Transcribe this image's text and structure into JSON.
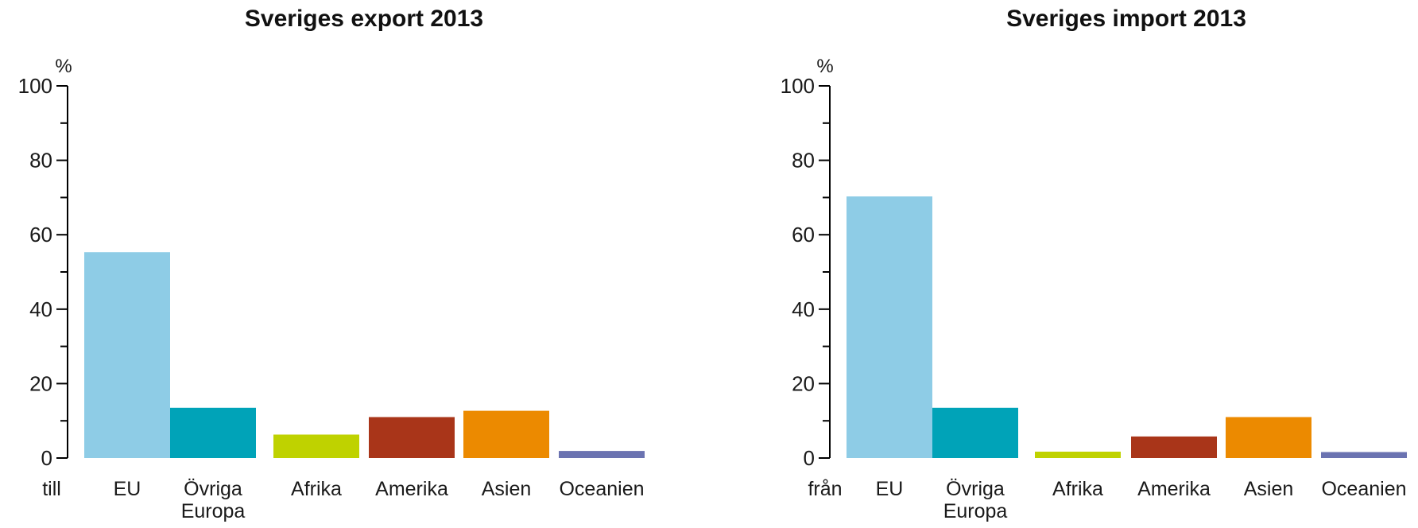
{
  "chart_data": [
    {
      "type": "bar",
      "title": "Sveriges export 2013",
      "unit_label": "%",
      "axis_prefix": "till",
      "categories": [
        "EU",
        "Övriga Europa",
        "Afrika",
        "Amerika",
        "Asien",
        "Oceanien"
      ],
      "values": [
        55.3,
        13.5,
        6.3,
        11,
        12.7,
        1.9
      ],
      "ylim": [
        0,
        100
      ],
      "yticks": [
        0,
        20,
        40,
        60,
        80,
        100
      ],
      "colors": [
        "#8ecce6",
        "#00a3b8",
        "#bfd200",
        "#a93519",
        "#ec8a00",
        "#6b73b1"
      ]
    },
    {
      "type": "bar",
      "title": "Sveriges import 2013",
      "unit_label": "%",
      "axis_prefix": "från",
      "categories": [
        "EU",
        "Övriga Europa",
        "Afrika",
        "Amerika",
        "Asien",
        "Oceanien"
      ],
      "values": [
        70.3,
        13.5,
        1.7,
        5.8,
        11,
        1.6
      ],
      "ylim": [
        0,
        100
      ],
      "yticks": [
        0,
        20,
        40,
        60,
        80,
        100
      ],
      "colors": [
        "#8ecce6",
        "#00a3b8",
        "#bfd200",
        "#a93519",
        "#ec8a00",
        "#6b73b1"
      ]
    }
  ]
}
